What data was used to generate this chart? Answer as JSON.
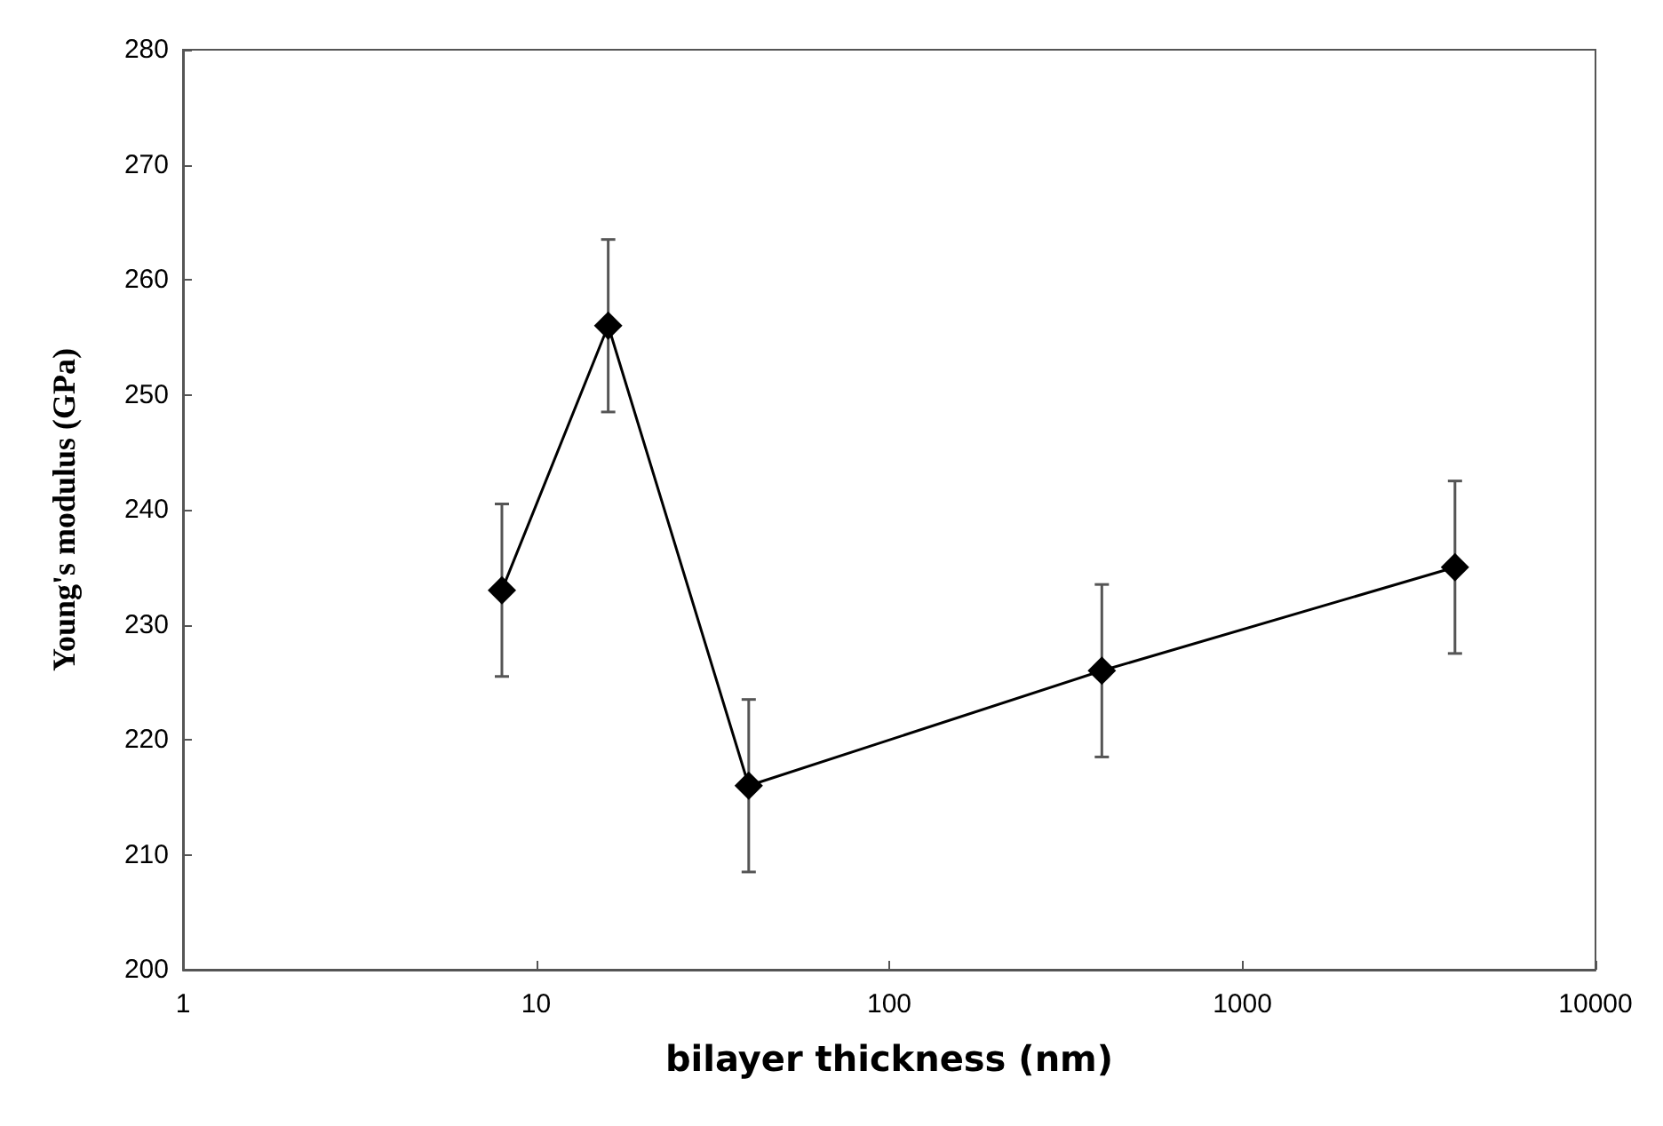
{
  "chart_data": {
    "type": "line",
    "xlabel": "bilayer thickness (nm)",
    "ylabel": "Young's modulus (GPa)",
    "x": [
      8,
      16,
      40,
      400,
      4000
    ],
    "values": [
      233,
      256,
      216,
      226,
      235
    ],
    "errors": [
      7.5,
      7.5,
      7.5,
      7.5,
      7.5
    ],
    "color": "#000000",
    "marker": "diamond",
    "line_style": "solid",
    "log": "x",
    "xlim": [
      1,
      10000
    ],
    "xticks": [
      1,
      10,
      100,
      1000,
      10000
    ],
    "ylim": [
      200,
      280
    ],
    "yticks": [
      200,
      210,
      220,
      230,
      240,
      250,
      260,
      270,
      280
    ]
  }
}
